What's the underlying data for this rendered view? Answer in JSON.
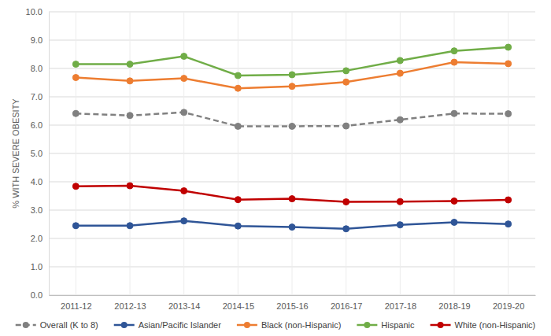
{
  "chart_data": {
    "type": "line",
    "y_label": "% WITH SEVERE OBESITY",
    "categories": [
      "2011-12",
      "2012-13",
      "2013-14",
      "2014-15",
      "2015-16",
      "2016-17",
      "2017-18",
      "2018-19",
      "2019-20"
    ],
    "series": [
      {
        "name": "Overall (K to 8)",
        "color": "#808080",
        "line_style": "dashed",
        "marker": "circle",
        "values": [
          6.41,
          6.34,
          6.45,
          5.96,
          5.96,
          5.97,
          6.19,
          6.41,
          6.4
        ]
      },
      {
        "name": "Asian/Pacific Islander",
        "color": "#2f5597",
        "line_style": "solid",
        "marker": "circle",
        "values": [
          2.45,
          2.45,
          2.62,
          2.44,
          2.4,
          2.34,
          2.48,
          2.57,
          2.51
        ]
      },
      {
        "name": "Black (non-Hispanic)",
        "color": "#ed7d31",
        "line_style": "solid",
        "marker": "circle",
        "values": [
          7.68,
          7.56,
          7.65,
          7.3,
          7.37,
          7.52,
          7.83,
          8.22,
          8.17
        ]
      },
      {
        "name": "Hispanic",
        "color": "#70ad47",
        "line_style": "solid",
        "marker": "circle",
        "values": [
          8.15,
          8.15,
          8.43,
          7.75,
          7.78,
          7.92,
          8.28,
          8.62,
          8.75
        ]
      },
      {
        "name": "White (non-Hispanic)",
        "color": "#c00000",
        "line_style": "solid",
        "marker": "circle",
        "values": [
          3.84,
          3.86,
          3.68,
          3.37,
          3.4,
          3.29,
          3.3,
          3.32,
          3.36
        ]
      }
    ],
    "ylim": [
      0,
      10
    ],
    "yticks": [
      {
        "value": 0,
        "label": "0.0"
      },
      {
        "value": 1,
        "label": "1.0"
      },
      {
        "value": 2,
        "label": "2.0"
      },
      {
        "value": 3,
        "label": "3.0"
      },
      {
        "value": 4,
        "label": "4.0"
      },
      {
        "value": 5,
        "label": "5.0"
      },
      {
        "value": 6,
        "label": "6.0"
      },
      {
        "value": 7,
        "label": "7.0"
      },
      {
        "value": 8,
        "label": "8.0"
      },
      {
        "value": 9,
        "label": "9.0"
      },
      {
        "value": 10,
        "label": "10.0"
      }
    ],
    "grid": true,
    "legend": "bottom"
  }
}
